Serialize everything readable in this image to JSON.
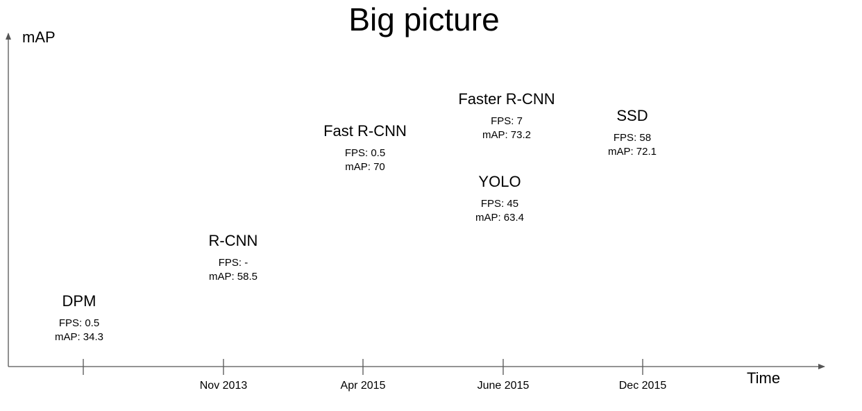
{
  "title": "Big picture",
  "y_axis_label": "mAP",
  "x_axis_label": "Time",
  "ticks": [
    "",
    "Nov 2013",
    "Apr 2015",
    "June 2015",
    "Dec 2015"
  ],
  "models": [
    {
      "name": "DPM",
      "fps": "FPS: 0.5",
      "map": "mAP: 34.3"
    },
    {
      "name": "R-CNN",
      "fps": "FPS: -",
      "map": "mAP: 58.5"
    },
    {
      "name": "Fast R-CNN",
      "fps": "FPS: 0.5",
      "map": "mAP: 70"
    },
    {
      "name": "Faster R-CNN",
      "fps": "FPS: 7",
      "map": "mAP: 73.2"
    },
    {
      "name": "YOLO",
      "fps": "FPS: 45",
      "map": "mAP: 63.4"
    },
    {
      "name": "SSD",
      "fps": "FPS: 58",
      "map": "mAP: 72.1"
    }
  ],
  "colors": {
    "axis": "#555555",
    "text": "#000000"
  }
}
